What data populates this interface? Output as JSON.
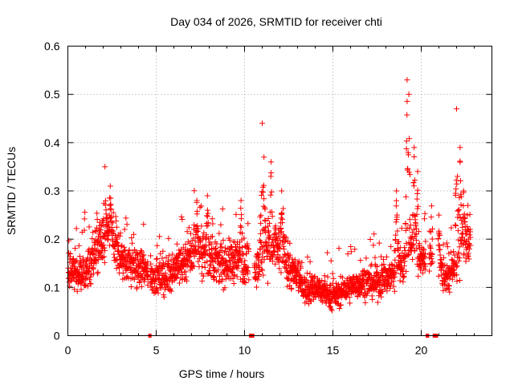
{
  "chart_data": {
    "type": "scatter",
    "title": "Day 034 of 2026, SRMTID for receiver chti",
    "xlabel": "GPS time / hours",
    "ylabel": "SRMTID / TECUs",
    "xlim": [
      0,
      24
    ],
    "ylim": [
      0,
      0.6
    ],
    "xticks": [
      0,
      5,
      10,
      15,
      20
    ],
    "yticks": [
      0,
      0.1,
      0.2,
      0.3,
      0.4,
      0.5,
      0.6
    ],
    "xtick_labels": [
      "0",
      "5",
      "10",
      "15",
      "20"
    ],
    "ytick_labels": [
      "0",
      "0.1",
      "0.2",
      "0.3",
      "0.4",
      "0.5",
      "0.6"
    ],
    "grid": true,
    "marker": "plus",
    "color": "#ff0000",
    "series": [
      {
        "name": "SRMTID",
        "trend": [
          [
            0.0,
            0.14
          ],
          [
            0.5,
            0.13
          ],
          [
            1.0,
            0.13
          ],
          [
            1.5,
            0.17
          ],
          [
            2.0,
            0.2
          ],
          [
            2.5,
            0.2
          ],
          [
            3.0,
            0.16
          ],
          [
            3.5,
            0.15
          ],
          [
            4.0,
            0.14
          ],
          [
            4.5,
            0.13
          ],
          [
            5.0,
            0.12
          ],
          [
            5.5,
            0.12
          ],
          [
            6.0,
            0.14
          ],
          [
            6.5,
            0.15
          ],
          [
            7.0,
            0.17
          ],
          [
            7.5,
            0.18
          ],
          [
            8.0,
            0.16
          ],
          [
            8.5,
            0.15
          ],
          [
            9.0,
            0.15
          ],
          [
            9.5,
            0.16
          ],
          [
            10.0,
            0.15
          ],
          [
            10.5,
            0.14
          ],
          [
            11.0,
            0.17
          ],
          [
            11.5,
            0.19
          ],
          [
            12.0,
            0.18
          ],
          [
            12.5,
            0.14
          ],
          [
            13.0,
            0.12
          ],
          [
            13.5,
            0.09
          ],
          [
            14.0,
            0.1
          ],
          [
            14.5,
            0.09
          ],
          [
            15.0,
            0.08
          ],
          [
            15.5,
            0.09
          ],
          [
            16.0,
            0.1
          ],
          [
            16.5,
            0.11
          ],
          [
            17.0,
            0.11
          ],
          [
            17.5,
            0.11
          ],
          [
            18.0,
            0.12
          ],
          [
            18.5,
            0.13
          ],
          [
            19.0,
            0.15
          ],
          [
            19.5,
            0.2
          ],
          [
            20.0,
            0.15
          ],
          [
            20.5,
            0.18
          ],
          [
            21.0,
            0.14
          ],
          [
            21.5,
            0.12
          ],
          [
            22.0,
            0.15
          ],
          [
            22.5,
            0.2
          ],
          [
            22.8,
            0.21
          ]
        ],
        "peaks": [
          [
            2.1,
            0.35
          ],
          [
            2.4,
            0.31
          ],
          [
            7.3,
            0.28
          ],
          [
            7.9,
            0.29
          ],
          [
            9.8,
            0.28
          ],
          [
            11.0,
            0.44
          ],
          [
            11.1,
            0.37
          ],
          [
            11.5,
            0.36
          ],
          [
            12.1,
            0.3
          ],
          [
            18.6,
            0.3
          ],
          [
            19.2,
            0.53
          ],
          [
            19.3,
            0.5
          ],
          [
            19.6,
            0.39
          ],
          [
            19.8,
            0.34
          ],
          [
            21.0,
            0.25
          ],
          [
            22.0,
            0.47
          ],
          [
            22.2,
            0.39
          ],
          [
            22.4,
            0.3
          ]
        ],
        "data_gaps": [
          [
            4.55,
            4.65
          ],
          [
            10.25,
            10.55
          ],
          [
            20.25,
            20.45
          ],
          [
            20.65,
            20.95
          ]
        ]
      }
    ]
  }
}
